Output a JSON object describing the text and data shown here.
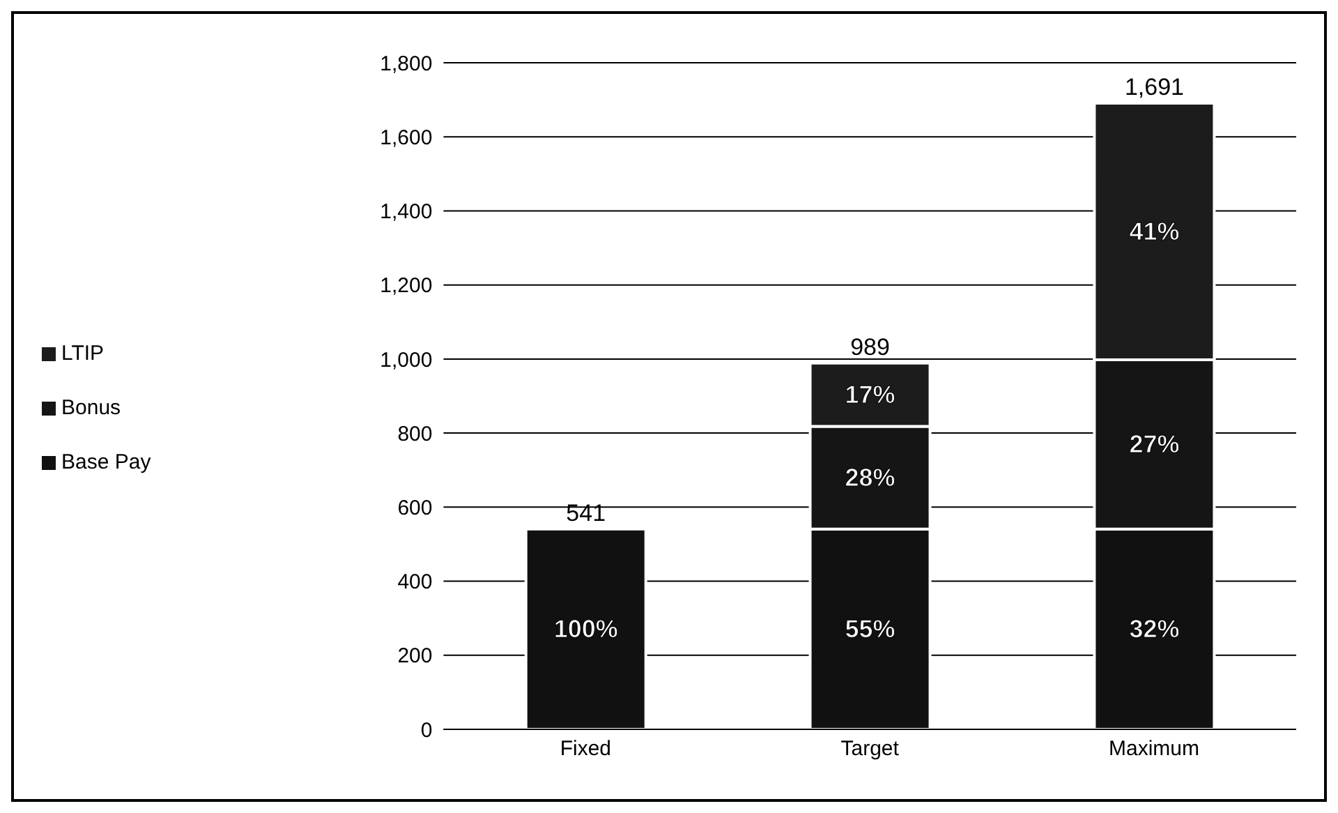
{
  "chart_data": {
    "type": "bar",
    "stacked": true,
    "categories": [
      "Fixed",
      "Target",
      "Maximum"
    ],
    "series": [
      {
        "name": "Base Pay",
        "color": "#111111",
        "values": [
          541,
          541,
          541
        ]
      },
      {
        "name": "Bonus",
        "color": "#151515",
        "values": [
          null,
          277,
          457
        ]
      },
      {
        "name": "LTIP",
        "color": "#1c1c1c",
        "values": [
          null,
          171,
          693
        ]
      }
    ],
    "annotations": [
      "100%",
      "55%",
      "28%",
      "17%",
      "32%",
      "27%",
      "41%"
    ],
    "totals": [
      "541",
      "989",
      "1,691"
    ],
    "ylim": [
      0,
      1800
    ],
    "yticks": [
      0,
      {
        "value": 200,
        "label": "200"
      },
      {
        "value": 400,
        "label": "400"
      },
      {
        "value": 600,
        "label": "600"
      },
      {
        "value": 800,
        "label": "800"
      },
      {
        "value": 1000,
        "label": "1,000"
      },
      {
        "value": 1200,
        "label": "1,200"
      },
      {
        "value": 1400,
        "label": "1,400"
      },
      {
        "value": 1600,
        "label": "1,600"
      },
      {
        "value": 1800,
        "label": "1,800"
      }
    ],
    "grid": "y",
    "legend": "left"
  }
}
